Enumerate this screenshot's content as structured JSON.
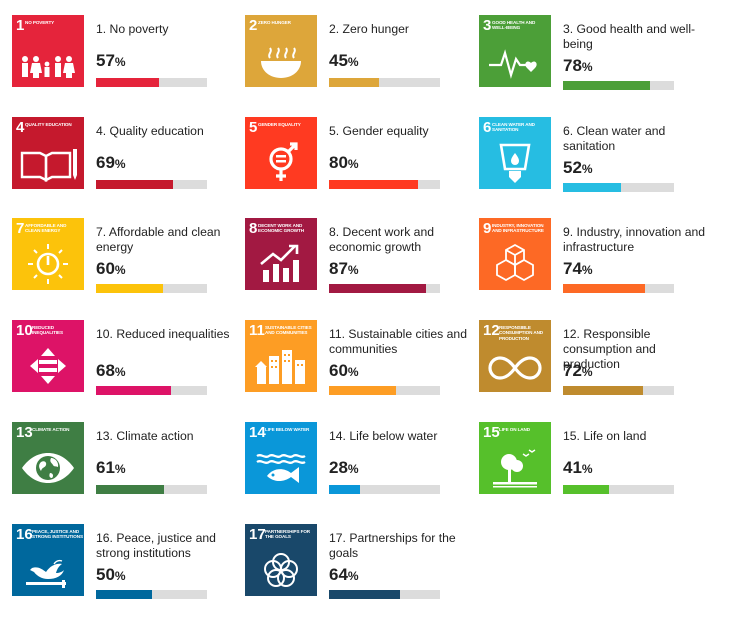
{
  "chart_data": {
    "type": "bar",
    "percent_symbol": "%",
    "xlim": [
      0,
      100
    ],
    "goals": [
      {
        "num": "1",
        "tile_label": "NO POVERTY",
        "label": "1. No poverty",
        "value": 57,
        "pct_text": "57",
        "color": "#e5243b",
        "icon": "family-icon"
      },
      {
        "num": "2",
        "tile_label": "ZERO HUNGER",
        "label": "2. Zero hunger",
        "value": 45,
        "pct_text": "45",
        "color": "#dda63a",
        "icon": "bowl-icon"
      },
      {
        "num": "3",
        "tile_label": "GOOD HEALTH AND WELL-BEING",
        "label": "3. Good health and well-being",
        "value": 78,
        "pct_text": "78",
        "color": "#4c9f38",
        "icon": "heartbeat-icon"
      },
      {
        "num": "4",
        "tile_label": "QUALITY EDUCATION",
        "label": "4. Quality education",
        "value": 69,
        "pct_text": "69",
        "color": "#c5192d",
        "icon": "book-icon"
      },
      {
        "num": "5",
        "tile_label": "GENDER EQUALITY",
        "label": "5. Gender equality",
        "value": 80,
        "pct_text": "80",
        "color": "#ff3a21",
        "icon": "gender-icon"
      },
      {
        "num": "6",
        "tile_label": "CLEAN WATER AND SANITATION",
        "label": "6. Clean water and sanitation",
        "value": 52,
        "pct_text": "52",
        "color": "#26bde2",
        "icon": "water-glass-icon"
      },
      {
        "num": "7",
        "tile_label": "AFFORDABLE AND CLEAN ENERGY",
        "label": "7. Affordable and clean energy",
        "value": 60,
        "pct_text": "60",
        "color": "#fcc30b",
        "icon": "power-sun-icon"
      },
      {
        "num": "8",
        "tile_label": "DECENT WORK AND ECONOMIC GROWTH",
        "label": "8. Decent work and economic growth",
        "value": 87,
        "pct_text": "87",
        "color": "#a21942",
        "icon": "growth-chart-icon"
      },
      {
        "num": "9",
        "tile_label": "INDUSTRY, INNOVATION AND INFRASTRUCTURE",
        "label": "9. Industry, innovation and infrastructure",
        "value": 74,
        "pct_text": "74",
        "color": "#fd6925",
        "icon": "cubes-icon"
      },
      {
        "num": "10",
        "tile_label": "REDUCED INEQUALITIES",
        "label": "10. Reduced inequalities",
        "value": 68,
        "pct_text": "68",
        "color": "#dd1367",
        "icon": "equality-arrows-icon"
      },
      {
        "num": "11",
        "tile_label": "SUSTAINABLE CITIES AND COMMUNITIES",
        "label": "11. Sustainable cities and communities",
        "value": 60,
        "pct_text": "60",
        "color": "#fd9d24",
        "icon": "city-icon"
      },
      {
        "num": "12",
        "tile_label": "RESPONSIBLE CONSUMPTION AND PRODUCTION",
        "label": "12. Responsible consumption and production",
        "value": 72,
        "pct_text": "72",
        "color": "#bf8b2e",
        "icon": "infinity-icon"
      },
      {
        "num": "13",
        "tile_label": "CLIMATE ACTION",
        "label": "13. Climate action",
        "value": 61,
        "pct_text": "61",
        "color": "#3f7e44",
        "icon": "eye-globe-icon"
      },
      {
        "num": "14",
        "tile_label": "LIFE BELOW WATER",
        "label": "14. Life below water",
        "value": 28,
        "pct_text": "28",
        "color": "#0a97d9",
        "icon": "fish-icon"
      },
      {
        "num": "15",
        "tile_label": "LIFE ON LAND",
        "label": "15. Life on land",
        "value": 41,
        "pct_text": "41",
        "color": "#56c02b",
        "icon": "tree-icon"
      },
      {
        "num": "16",
        "tile_label": "PEACE, JUSTICE AND STRONG INSTITUTIONS",
        "label": "16. Peace, justice and strong institutions",
        "value": 50,
        "pct_text": "50",
        "color": "#00689d",
        "icon": "dove-icon"
      },
      {
        "num": "17",
        "tile_label": "PARTNERSHIPS FOR THE GOALS",
        "label": "17. Partnerships for the goals",
        "value": 64,
        "pct_text": "64",
        "color": "#19486a",
        "icon": "rings-icon"
      }
    ]
  }
}
